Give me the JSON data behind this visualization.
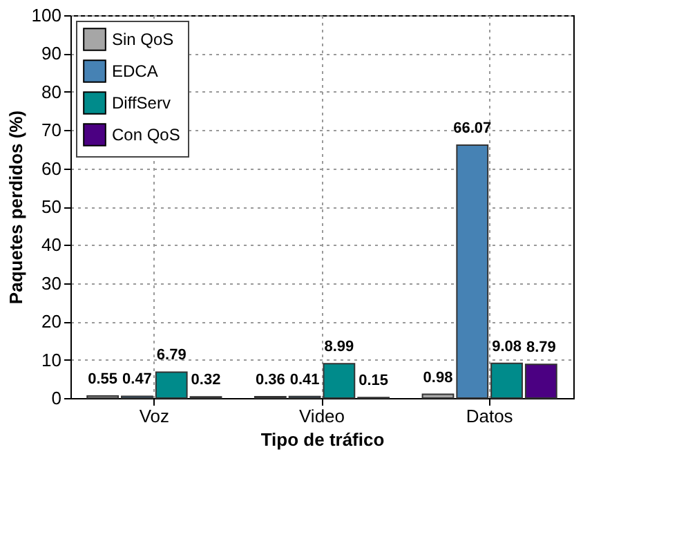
{
  "chart_data": {
    "type": "bar",
    "xlabel": "Tipo de tráfico",
    "ylabel": "Paquetes perdidos (%)",
    "categories": [
      "Voz",
      "Video",
      "Datos"
    ],
    "series": [
      {
        "name": "Sin  QoS",
        "color": "#a6a6a6",
        "values": [
          0.55,
          0.36,
          0.98
        ]
      },
      {
        "name": "EDCA",
        "color": "#4682b4",
        "values": [
          0.47,
          0.41,
          66.07
        ]
      },
      {
        "name": "DiffServ",
        "color": "#008b8b",
        "values": [
          6.79,
          8.99,
          9.08
        ]
      },
      {
        "name": "Con QoS",
        "color": "#4b0082",
        "values": [
          0.32,
          0.15,
          8.79
        ]
      }
    ],
    "ylim": [
      0,
      100
    ],
    "yticks": [
      0,
      10,
      20,
      30,
      40,
      50,
      60,
      70,
      80,
      90,
      100
    ],
    "grid": true,
    "legend": "top left",
    "data_labels": true
  }
}
